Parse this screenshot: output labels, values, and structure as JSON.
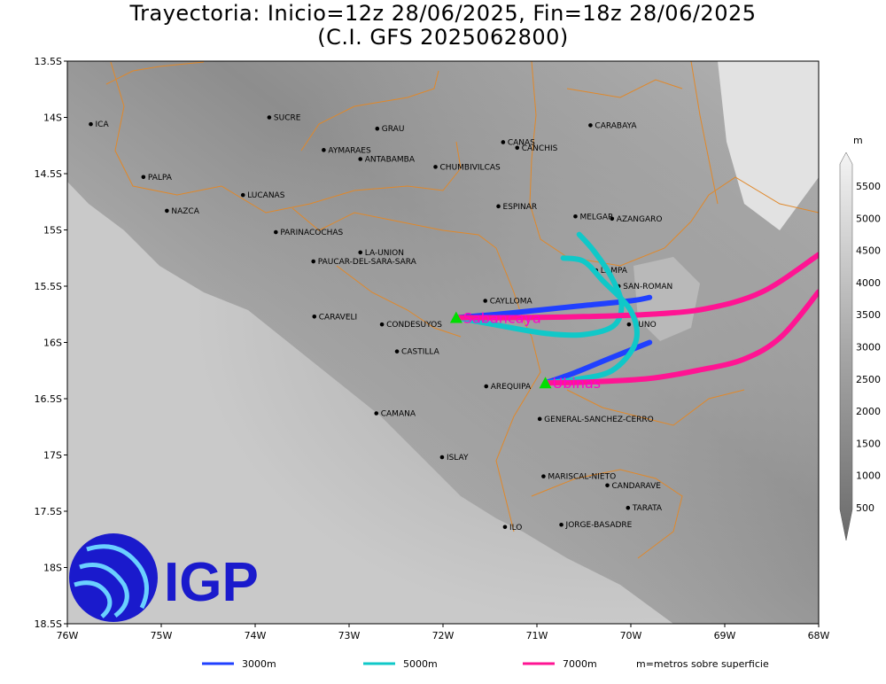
{
  "title": {
    "line1": "Trayectoria: Inicio=12z 28/06/2025, Fin=18z 28/06/2025",
    "line2": "(C.I. GFS 2025062800)"
  },
  "map": {
    "lon_range": [
      -76,
      -68
    ],
    "lat_range": [
      -18.5,
      -13.5
    ],
    "x_ticks": [
      "76W",
      "75W",
      "74W",
      "73W",
      "72W",
      "71W",
      "70W",
      "69W",
      "68W"
    ],
    "y_ticks": [
      "13.5S",
      "14S",
      "14.5S",
      "15S",
      "15.5S",
      "16S",
      "16.5S",
      "17S",
      "17.5S",
      "18S",
      "18.5S"
    ],
    "places": [
      {
        "name": "ICA",
        "lon": -75.75,
        "lat": -14.06
      },
      {
        "name": "SUCRE",
        "lon": -73.85,
        "lat": -14.0
      },
      {
        "name": "GRAU",
        "lon": -72.7,
        "lat": -14.1
      },
      {
        "name": "CANAS",
        "lon": -71.36,
        "lat": -14.22
      },
      {
        "name": "CANCHIS",
        "lon": -71.21,
        "lat": -14.27
      },
      {
        "name": "CARABAYA",
        "lon": -70.43,
        "lat": -14.07
      },
      {
        "name": "AYMARAES",
        "lon": -73.27,
        "lat": -14.29
      },
      {
        "name": "ANTABAMBA",
        "lon": -72.88,
        "lat": -14.37
      },
      {
        "name": "CHUMBIVILCAS",
        "lon": -72.08,
        "lat": -14.44
      },
      {
        "name": "PALPA",
        "lon": -75.19,
        "lat": -14.53
      },
      {
        "name": "LUCANAS",
        "lon": -74.13,
        "lat": -14.69
      },
      {
        "name": "ESPINAR",
        "lon": -71.41,
        "lat": -14.79
      },
      {
        "name": "NAZCA",
        "lon": -74.94,
        "lat": -14.83
      },
      {
        "name": "MELGAR",
        "lon": -70.59,
        "lat": -14.88
      },
      {
        "name": "AZANGARO",
        "lon": -70.2,
        "lat": -14.9
      },
      {
        "name": "PARINACOCHAS",
        "lon": -73.78,
        "lat": -15.02
      },
      {
        "name": "LA-UNION",
        "lon": -72.88,
        "lat": -15.2
      },
      {
        "name": "PAUCAR-DEL-SARA-SARA",
        "lon": -73.38,
        "lat": -15.28
      },
      {
        "name": "LAMPA",
        "lon": -70.37,
        "lat": -15.36
      },
      {
        "name": "SAN-ROMAN",
        "lon": -70.13,
        "lat": -15.5
      },
      {
        "name": "CAYLLOMA",
        "lon": -71.55,
        "lat": -15.63
      },
      {
        "name": "CARAVELI",
        "lon": -73.37,
        "lat": -15.77
      },
      {
        "name": "CONDESUYOS",
        "lon": -72.65,
        "lat": -15.84
      },
      {
        "name": "PUNO",
        "lon": -70.02,
        "lat": -15.84
      },
      {
        "name": "CASTILLA",
        "lon": -72.49,
        "lat": -16.08
      },
      {
        "name": "AREQUIPA",
        "lon": -71.54,
        "lat": -16.39
      },
      {
        "name": "CAMANA",
        "lon": -72.71,
        "lat": -16.63
      },
      {
        "name": "GENERAL-SANCHEZ-CERRO",
        "lon": -70.97,
        "lat": -16.68
      },
      {
        "name": "ISLAY",
        "lon": -72.01,
        "lat": -17.02
      },
      {
        "name": "MARISCAL-NIETO",
        "lon": -70.93,
        "lat": -17.19
      },
      {
        "name": "CANDARAVE",
        "lon": -70.25,
        "lat": -17.27
      },
      {
        "name": "TARATA",
        "lon": -70.03,
        "lat": -17.47
      },
      {
        "name": "ILO",
        "lon": -71.34,
        "lat": -17.64
      },
      {
        "name": "JORGE-BASADRE",
        "lon": -70.74,
        "lat": -17.62
      }
    ],
    "start_points": [
      {
        "name": "Sabancaya",
        "lon": -71.86,
        "lat": -15.78
      },
      {
        "name": "Ubinas",
        "lon": -70.91,
        "lat": -16.36
      }
    ],
    "trajectories": [
      {
        "level": "3000m",
        "color": "#2040ff",
        "from": "Sabancaya",
        "points": [
          [
            -71.86,
            -15.78
          ],
          [
            -71.3,
            -15.74
          ],
          [
            -70.6,
            -15.68
          ],
          [
            -70.0,
            -15.63
          ],
          [
            -69.8,
            -15.6
          ]
        ]
      },
      {
        "level": "5000m",
        "color": "#10c8c8",
        "from": "Sabancaya",
        "points": [
          [
            -71.86,
            -15.78
          ],
          [
            -71.4,
            -15.85
          ],
          [
            -70.9,
            -15.92
          ],
          [
            -70.5,
            -15.93
          ],
          [
            -70.18,
            -15.85
          ],
          [
            -70.1,
            -15.65
          ],
          [
            -70.22,
            -15.4
          ],
          [
            -70.4,
            -15.18
          ],
          [
            -70.55,
            -15.04
          ]
        ]
      },
      {
        "level": "7000m",
        "color": "#ff1493",
        "from": "Sabancaya",
        "points": [
          [
            -71.86,
            -15.78
          ],
          [
            -71.2,
            -15.78
          ],
          [
            -70.5,
            -15.77
          ],
          [
            -69.8,
            -15.75
          ],
          [
            -69.2,
            -15.7
          ],
          [
            -68.6,
            -15.55
          ],
          [
            -68.0,
            -15.22
          ]
        ]
      },
      {
        "level": "3000m",
        "color": "#2040ff",
        "from": "Ubinas",
        "points": [
          [
            -70.91,
            -16.36
          ],
          [
            -70.6,
            -16.27
          ],
          [
            -70.25,
            -16.15
          ],
          [
            -69.8,
            -16.0
          ]
        ]
      },
      {
        "level": "5000m",
        "color": "#10c8c8",
        "from": "Ubinas",
        "points": [
          [
            -70.91,
            -16.36
          ],
          [
            -70.6,
            -16.33
          ],
          [
            -70.2,
            -16.25
          ],
          [
            -69.95,
            -16.0
          ],
          [
            -70.0,
            -15.72
          ],
          [
            -70.3,
            -15.45
          ],
          [
            -70.5,
            -15.28
          ],
          [
            -70.72,
            -15.25
          ]
        ]
      },
      {
        "level": "7000m",
        "color": "#ff1493",
        "from": "Ubinas",
        "points": [
          [
            -70.91,
            -16.36
          ],
          [
            -70.4,
            -16.35
          ],
          [
            -69.8,
            -16.32
          ],
          [
            -69.3,
            -16.25
          ],
          [
            -68.8,
            -16.15
          ],
          [
            -68.4,
            -15.95
          ],
          [
            -68.0,
            -15.55
          ]
        ]
      }
    ]
  },
  "colorbar": {
    "unit": "m",
    "ticks": [
      "500",
      "1000",
      "1500",
      "2000",
      "2500",
      "3000",
      "3500",
      "4000",
      "4500",
      "5000",
      "5500"
    ]
  },
  "legend": {
    "items": [
      {
        "label": "3000m",
        "color": "#2040ff"
      },
      {
        "label": "5000m",
        "color": "#10c8c8"
      },
      {
        "label": "7000m",
        "color": "#ff1493"
      }
    ],
    "note": "m=metros sobre superficie"
  },
  "logo": {
    "text": "IGP",
    "color": "#1a1acc"
  }
}
